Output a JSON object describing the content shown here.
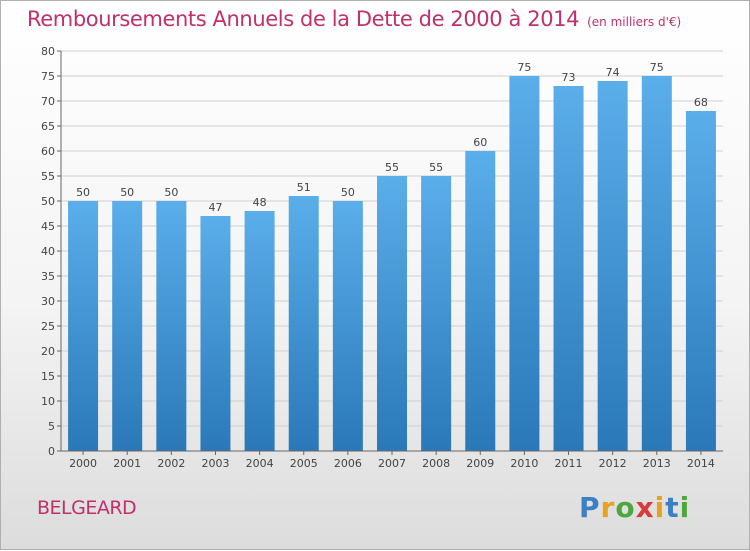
{
  "header": {
    "title": "Remboursements Annuels de la Dette de 2000 à 2014",
    "unit": "(en milliers d'€)"
  },
  "footer": {
    "town": "BELGEARD",
    "logo_text": "Proxiti"
  },
  "colors": {
    "title": "#c0306c",
    "bar_top": "#5aaeea",
    "bar_bottom": "#2a78b8",
    "grid": "#d0d0d0"
  },
  "chart_data": {
    "type": "bar",
    "title": "Remboursements Annuels de la Dette de 2000 à 2014",
    "xlabel": "",
    "ylabel": "",
    "ylim": [
      0,
      80
    ],
    "y_tick_step": 5,
    "grid": true,
    "categories": [
      "2000",
      "2001",
      "2002",
      "2003",
      "2004",
      "2005",
      "2006",
      "2007",
      "2008",
      "2009",
      "2010",
      "2011",
      "2012",
      "2013",
      "2014"
    ],
    "values": [
      50,
      50,
      50,
      47,
      48,
      51,
      50,
      55,
      55,
      60,
      75,
      73,
      74,
      75,
      68
    ]
  }
}
